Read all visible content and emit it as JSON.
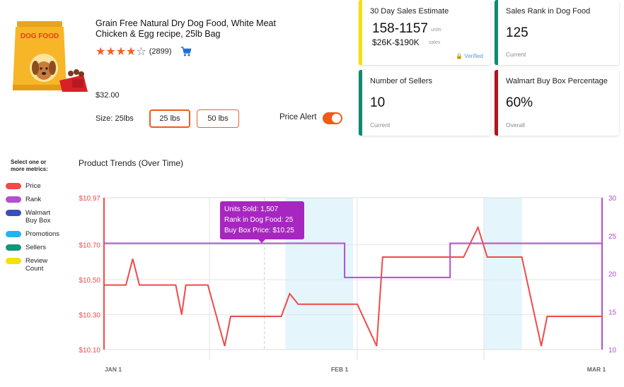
{
  "product": {
    "title": "Grain Free Natural Dry Dog Food, White Meat Chicken & Egg recipe, 25lb Bag",
    "image_text": "DOG FOOD",
    "rating_count": "(2899)",
    "rating": 4,
    "price": "$32.00",
    "size_label": "Size: 25lbs",
    "sizes": [
      "25 lbs",
      "50 lbs"
    ],
    "selected_size": "25 lbs",
    "price_alert_label": "Price Alert",
    "price_alert_on": true
  },
  "cards": {
    "sales_estimate": {
      "title": "30 Day Sales Estimate",
      "units_value": "158-1157",
      "units_label": "units",
      "sales_value": "$26K-$190K",
      "sales_label": "sales",
      "verified": "🔒 Verified",
      "color": "#f5e00a"
    },
    "sales_rank": {
      "title": "Sales Rank in Dog Food",
      "value": "125",
      "sub": "Current",
      "color": "#0e8a6e"
    },
    "sellers": {
      "title": "Number of Sellers",
      "value": "10",
      "sub": "Current",
      "color": "#0e8a6e"
    },
    "buybox": {
      "title": "Walmart Buy Box Percentage",
      "value": "60%",
      "sub": "Overall",
      "color": "#b5121b"
    }
  },
  "metrics": {
    "title_line1": "Select one or",
    "title_line2": "more metrics:",
    "items": [
      {
        "label": "Price",
        "color": "#f04a4a"
      },
      {
        "label": "Rank",
        "color": "#b34fd1"
      },
      {
        "label": "Walmart Buy Box",
        "color": "#3a4fb8"
      },
      {
        "label": "Promotions",
        "color": "#22b4f0"
      },
      {
        "label": "Sellers",
        "color": "#13977a"
      },
      {
        "label": "Review Count",
        "color": "#f5e00a"
      }
    ]
  },
  "chart_title": "Product Trends (Over Time)",
  "tooltip": {
    "line1": "Units Sold: 1,507",
    "line2": "Rank in Dog Food: 25",
    "line3": "Buy Box Price: $10.25"
  },
  "chart_data": {
    "type": "line",
    "x_ticks": [
      "JAN 1",
      "FEB 1",
      "MAR 1"
    ],
    "x_range": [
      0,
      59
    ],
    "y_left_ticks": [
      "$10.10",
      "$10.30",
      "$10.50",
      "$10.70",
      "$10.97"
    ],
    "y_left_range": [
      10.1,
      10.97
    ],
    "y_right_ticks": [
      "10",
      "15",
      "20",
      "25",
      "30"
    ],
    "y_right_range": [
      10,
      30
    ],
    "promotions": [
      [
        21.5,
        29.5
      ],
      [
        45,
        49.5
      ]
    ],
    "series": [
      {
        "name": "Price",
        "axis": "left",
        "color": "#f04a4a",
        "points": [
          [
            0,
            10.47
          ],
          [
            2.6,
            10.47
          ],
          [
            3.4,
            10.62
          ],
          [
            4.2,
            10.47
          ],
          [
            8.5,
            10.47
          ],
          [
            9.2,
            10.3
          ],
          [
            9.7,
            10.47
          ],
          [
            12.3,
            10.47
          ],
          [
            14.3,
            10.12
          ],
          [
            15,
            10.29
          ],
          [
            21,
            10.29
          ],
          [
            22,
            10.42
          ],
          [
            23,
            10.36
          ],
          [
            30,
            10.36
          ],
          [
            32.3,
            10.12
          ],
          [
            33,
            10.63
          ],
          [
            42.6,
            10.63
          ],
          [
            44.3,
            10.8
          ],
          [
            45.4,
            10.63
          ],
          [
            49.5,
            10.63
          ],
          [
            51.8,
            10.12
          ],
          [
            52.5,
            10.29
          ],
          [
            59,
            10.29
          ]
        ]
      },
      {
        "name": "Rank",
        "axis": "right",
        "color": "#b34fd1",
        "points": [
          [
            0,
            24
          ],
          [
            28.5,
            24
          ],
          [
            28.5,
            19.5
          ],
          [
            41,
            19.5
          ],
          [
            41,
            24
          ],
          [
            59,
            24
          ]
        ]
      }
    ]
  }
}
